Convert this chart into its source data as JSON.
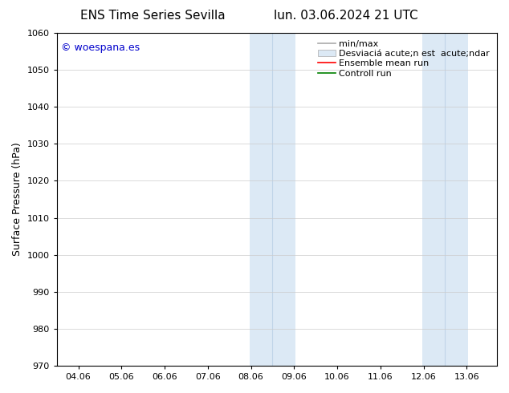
{
  "title_left": "ENS Time Series Sevilla",
  "title_right": "lun. 03.06.2024 21 UTC",
  "ylabel": "Surface Pressure (hPa)",
  "ylim": [
    970,
    1060
  ],
  "yticks": [
    970,
    980,
    990,
    1000,
    1010,
    1020,
    1030,
    1040,
    1050,
    1060
  ],
  "xtick_labels": [
    "04.06",
    "05.06",
    "06.06",
    "07.06",
    "08.06",
    "09.06",
    "10.06",
    "11.06",
    "12.06",
    "13.06"
  ],
  "xtick_positions": [
    0,
    1,
    2,
    3,
    4,
    5,
    6,
    7,
    8,
    9
  ],
  "xlim": [
    -0.5,
    9.7
  ],
  "band1_x0": 3.97,
  "band1_x1": 5.03,
  "band1_mid": 4.5,
  "band2_x0": 7.97,
  "band2_x1": 9.03,
  "band2_mid": 8.5,
  "band_color": "#dce9f5",
  "band_divider_color": "#c0d4e8",
  "watermark_text": "© woespana.es",
  "watermark_color": "#0000cc",
  "background_color": "#ffffff",
  "grid_color": "#cccccc",
  "spine_color": "#000000",
  "title_fontsize": 11,
  "tick_fontsize": 8,
  "label_fontsize": 9,
  "legend_fontsize": 8
}
